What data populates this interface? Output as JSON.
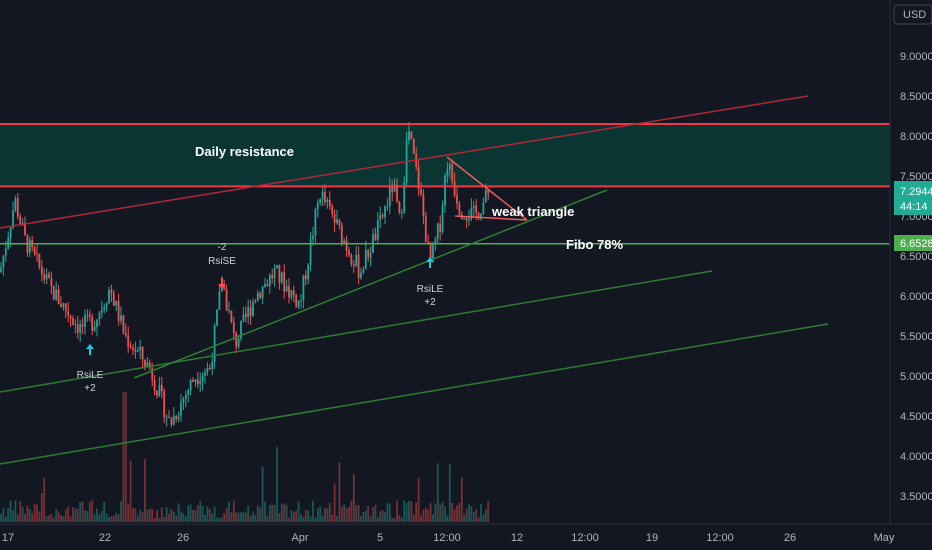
{
  "currency_label": "USD",
  "chart_data": {
    "type": "candlestick",
    "symbol_currency": "USD",
    "price_axis": {
      "min": 3.2,
      "max": 9.7,
      "ticks": [
        "9.0000",
        "8.5000",
        "8.0000",
        "7.5000",
        "7.0000",
        "6.5000",
        "6.0000",
        "5.5000",
        "5.0000",
        "4.5000",
        "4.0000",
        "3.5000"
      ]
    },
    "time_axis": {
      "ticks": [
        "17",
        "22",
        "26",
        "Apr",
        "5",
        "12:00",
        "12",
        "12:00",
        "19",
        "12:00",
        "26",
        "May"
      ]
    },
    "price_labels": {
      "current": "7.2944",
      "countdown": "44:14",
      "fibo": "6.6528"
    },
    "annotations": {
      "daily_resistance": "Daily resistance",
      "weak_triangle": "weak triangle",
      "fibo": "Fibo 78%"
    },
    "signals": [
      {
        "line1": "RsiLE",
        "line2": "+2",
        "direction": "long"
      },
      {
        "line1": "-2",
        "line2": "RsiSE",
        "direction": "short"
      },
      {
        "line1": "RsiLE",
        "line2": "+2",
        "direction": "long"
      }
    ],
    "levels": {
      "resistance_top": 8.15,
      "resistance_bottom": 7.37,
      "fibo_78": 6.6528,
      "current": 7.2944
    },
    "colors": {
      "background": "#131722",
      "up": "#26a69a",
      "down": "#ef5350",
      "resistance_line": "#f23645",
      "zone_fill": "#0b3b36",
      "fibo_line": "#4caf50",
      "trend_green": "#2e7d32",
      "trend_red": "#b22833",
      "current_label": "#22ab94",
      "fibo_label": "#4caf50"
    }
  }
}
